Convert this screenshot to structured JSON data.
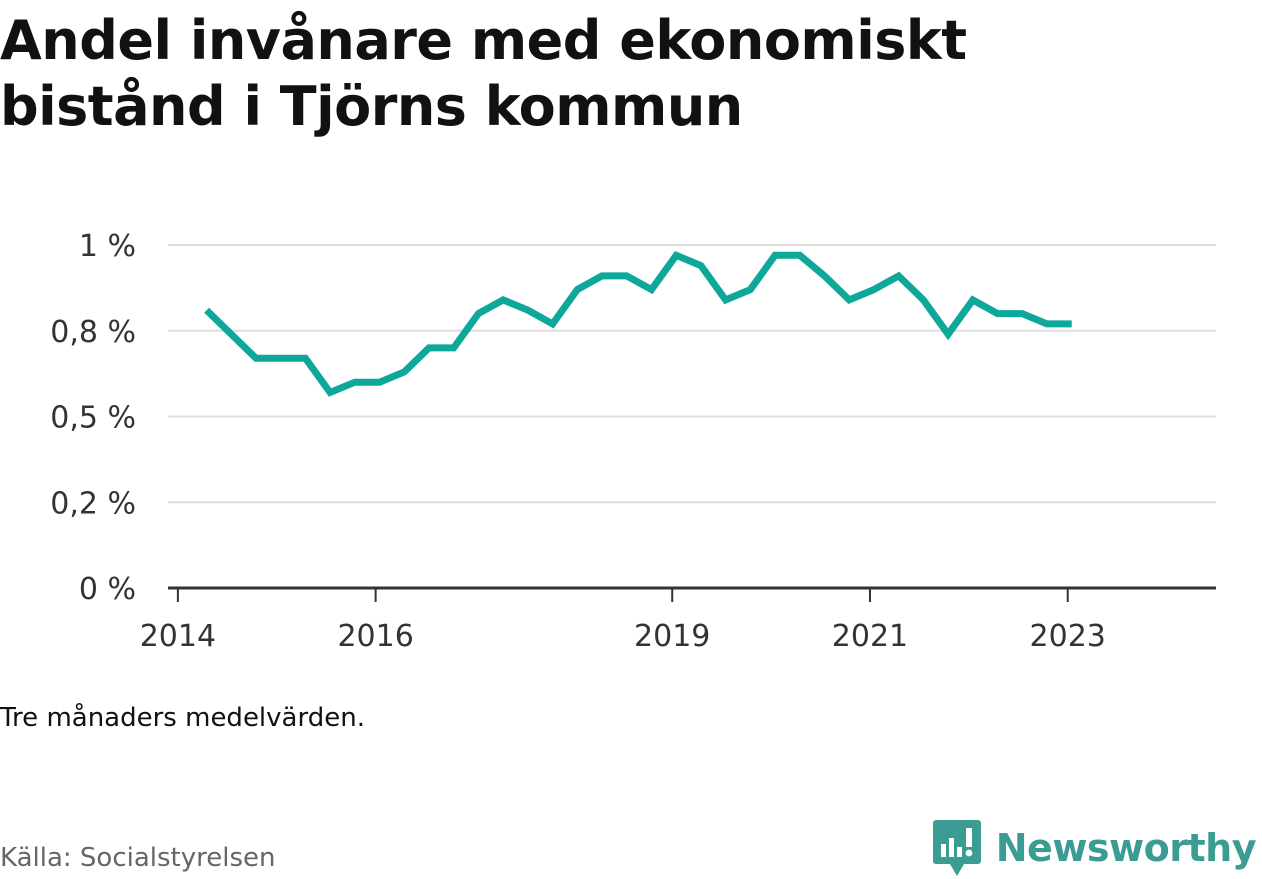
{
  "header": {
    "title": "Andel invånare med ekonomiskt bistånd i Tjörns kommun"
  },
  "footer": {
    "note": "Tre månaders medelvärden.",
    "source": "Källa: Socialstyrelsen",
    "brand": "Newsworthy"
  },
  "colors": {
    "line": "#0ea89a",
    "grid": "#dddddd",
    "axis": "#333333",
    "brand": "#3a9c93"
  },
  "chart_data": {
    "type": "line",
    "title": "Andel invånare med ekonomiskt bistånd i Tjörns kommun",
    "xlabel": "",
    "ylabel": "",
    "x_tick_labels": [
      "2014",
      "2016",
      "2019",
      "2021",
      "2023"
    ],
    "x_tick_values": [
      2014.0,
      2016.0,
      2019.0,
      2021.0,
      2023.0
    ],
    "y_tick_labels": [
      "0 %",
      "0,2 %",
      "0,5 %",
      "0,8 %",
      "1 %"
    ],
    "y_tick_values": [
      0,
      0.25,
      0.5,
      0.75,
      1.0
    ],
    "xlim": [
      2013.9,
      2024.5
    ],
    "ylim": [
      0,
      1.0
    ],
    "grid": "horizontal",
    "series": [
      {
        "x": [
          2014.29,
          2014.54,
          2014.79,
          2015.04,
          2015.29,
          2015.54,
          2015.79,
          2016.04,
          2016.29,
          2016.54,
          2016.79,
          2017.04,
          2017.29,
          2017.54,
          2017.79,
          2018.04,
          2018.29,
          2018.54,
          2018.79,
          2019.04,
          2019.29,
          2019.54,
          2019.79,
          2020.04,
          2020.29,
          2020.54,
          2020.79,
          2021.04,
          2021.29,
          2021.54,
          2021.79,
          2022.04,
          2022.29,
          2022.54,
          2022.79,
          2023.04
        ],
        "values": [
          0.81,
          0.74,
          0.67,
          0.67,
          0.67,
          0.57,
          0.6,
          0.6,
          0.63,
          0.7,
          0.7,
          0.8,
          0.84,
          0.81,
          0.77,
          0.87,
          0.91,
          0.91,
          0.87,
          0.97,
          0.94,
          0.84,
          0.87,
          0.97,
          0.97,
          0.91,
          0.84,
          0.87,
          0.91,
          0.84,
          0.74,
          0.84,
          0.8,
          0.8,
          0.77,
          0.77
        ]
      }
    ]
  }
}
